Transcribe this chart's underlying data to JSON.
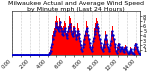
{
  "title": "Milwaukee Actual and Average Wind Speed by Minute mph (Last 24 Hours)",
  "bar_color": "#ff0000",
  "line_color": "#0000cc",
  "bg_color": "#ffffff",
  "grid_color": "#999999",
  "ylim": [
    0,
    9
  ],
  "yticks": [
    1,
    2,
    3,
    4,
    5,
    6,
    7,
    8
  ],
  "bar_values": [
    0.0,
    0.0,
    0.0,
    0.0,
    0.0,
    0.0,
    0.0,
    0.0,
    0.0,
    0.0,
    0.0,
    0.0,
    0.0,
    0.0,
    0.0,
    0.0,
    0.0,
    0.0,
    0.0,
    0.0,
    0.0,
    0.0,
    0.0,
    0.0,
    0.0,
    0.0,
    0.0,
    0.0,
    0.0,
    0.0,
    0.0,
    0.0,
    0.0,
    0.0,
    0.0,
    0.0,
    0.0,
    0.0,
    0.0,
    0.0,
    0.0,
    0.0,
    0.0,
    0.0,
    0.0,
    0.0,
    0.0,
    0.0,
    0.0,
    0.0,
    0.2,
    0.5,
    1.0,
    2.0,
    3.0,
    4.0,
    5.0,
    5.5,
    6.0,
    7.0,
    8.0,
    7.0,
    6.5,
    6.0,
    7.5,
    8.5,
    7.0,
    6.0,
    5.5,
    5.0,
    6.0,
    7.0,
    6.5,
    5.5,
    4.5,
    5.0,
    6.0,
    7.0,
    8.0,
    7.5,
    6.5,
    5.5,
    5.0,
    6.0,
    7.0,
    6.0,
    5.0,
    4.0,
    5.0,
    6.5,
    5.5,
    4.5,
    3.5,
    2.5,
    1.5,
    1.0,
    2.0,
    3.0,
    4.0,
    5.0,
    6.0,
    7.0,
    6.0,
    5.0,
    4.0,
    3.0,
    2.0,
    1.5,
    1.0,
    2.0,
    3.5,
    4.5,
    5.5,
    6.5,
    7.5,
    8.0,
    7.0,
    6.0,
    5.0,
    4.0,
    3.0,
    2.0,
    1.5,
    1.0,
    2.0,
    3.0,
    4.0,
    5.0,
    4.0,
    3.0,
    2.0,
    1.5,
    1.0,
    2.5,
    3.5,
    5.0,
    6.0,
    5.0,
    4.0,
    3.0,
    2.0,
    1.0,
    0.5,
    1.5,
    2.5,
    3.0,
    2.0,
    1.0,
    1.5,
    2.0,
    1.5,
    1.0,
    0.8,
    1.5,
    2.0,
    1.5,
    1.0,
    0.5,
    0.3,
    0.5,
    1.0,
    1.5,
    1.0,
    0.5,
    0.3,
    0.2,
    1.5,
    2.5,
    3.0,
    2.0,
    1.5,
    1.0,
    0.5,
    0.2
  ],
  "line_values": [
    0.0,
    0.0,
    0.0,
    0.0,
    0.0,
    0.0,
    0.0,
    0.0,
    0.0,
    0.0,
    0.0,
    0.0,
    0.0,
    0.0,
    0.0,
    0.0,
    0.0,
    0.0,
    0.0,
    0.0,
    0.0,
    0.0,
    0.0,
    0.0,
    0.0,
    0.0,
    0.0,
    0.0,
    0.0,
    0.0,
    0.0,
    0.0,
    0.0,
    0.0,
    0.0,
    0.0,
    0.0,
    0.0,
    0.0,
    0.0,
    0.0,
    0.0,
    0.0,
    0.0,
    0.0,
    0.0,
    0.0,
    0.0,
    0.0,
    0.0,
    0.2,
    0.4,
    0.8,
    1.5,
    2.3,
    3.2,
    4.0,
    4.5,
    5.0,
    5.8,
    6.5,
    5.8,
    5.3,
    4.8,
    5.8,
    6.8,
    5.5,
    4.8,
    4.3,
    4.0,
    4.8,
    5.5,
    5.0,
    4.3,
    3.5,
    4.0,
    4.8,
    5.5,
    6.3,
    5.8,
    5.0,
    4.3,
    3.8,
    4.5,
    5.5,
    4.8,
    4.0,
    3.2,
    4.0,
    5.0,
    4.3,
    3.5,
    2.8,
    2.0,
    1.2,
    0.8,
    1.5,
    2.3,
    3.2,
    4.0,
    4.8,
    5.5,
    4.8,
    4.0,
    3.2,
    2.5,
    1.5,
    1.2,
    0.8,
    1.5,
    2.8,
    3.5,
    4.3,
    5.0,
    5.8,
    6.3,
    5.5,
    4.8,
    4.0,
    3.2,
    2.5,
    1.5,
    1.2,
    0.8,
    1.5,
    2.3,
    3.2,
    4.0,
    3.2,
    2.3,
    1.5,
    1.2,
    0.8,
    2.0,
    2.8,
    4.0,
    4.8,
    4.0,
    3.2,
    2.3,
    1.5,
    0.8,
    0.4,
    1.2,
    2.0,
    2.3,
    1.5,
    0.8,
    1.2,
    1.5,
    1.2,
    0.8,
    0.6,
    1.2,
    1.5,
    1.2,
    0.8,
    0.4,
    0.3,
    0.4,
    0.8,
    1.2,
    0.8,
    0.4,
    0.3,
    0.2,
    1.2,
    2.0,
    2.3,
    1.5,
    1.2,
    0.8,
    0.4,
    0.2
  ],
  "n_bars": 174,
  "xtick_positions": [
    0,
    12,
    24,
    36,
    48,
    60,
    72,
    84,
    96,
    108,
    120,
    132,
    144,
    156,
    168
  ],
  "xtick_labels": [
    "0:00",
    "",
    "2:00",
    "",
    "4:00",
    "",
    "6:00",
    "",
    "8:00",
    "",
    "10:00",
    "",
    "12:00",
    "",
    "14:00"
  ],
  "title_fontsize": 4.5,
  "tick_fontsize": 3.5
}
